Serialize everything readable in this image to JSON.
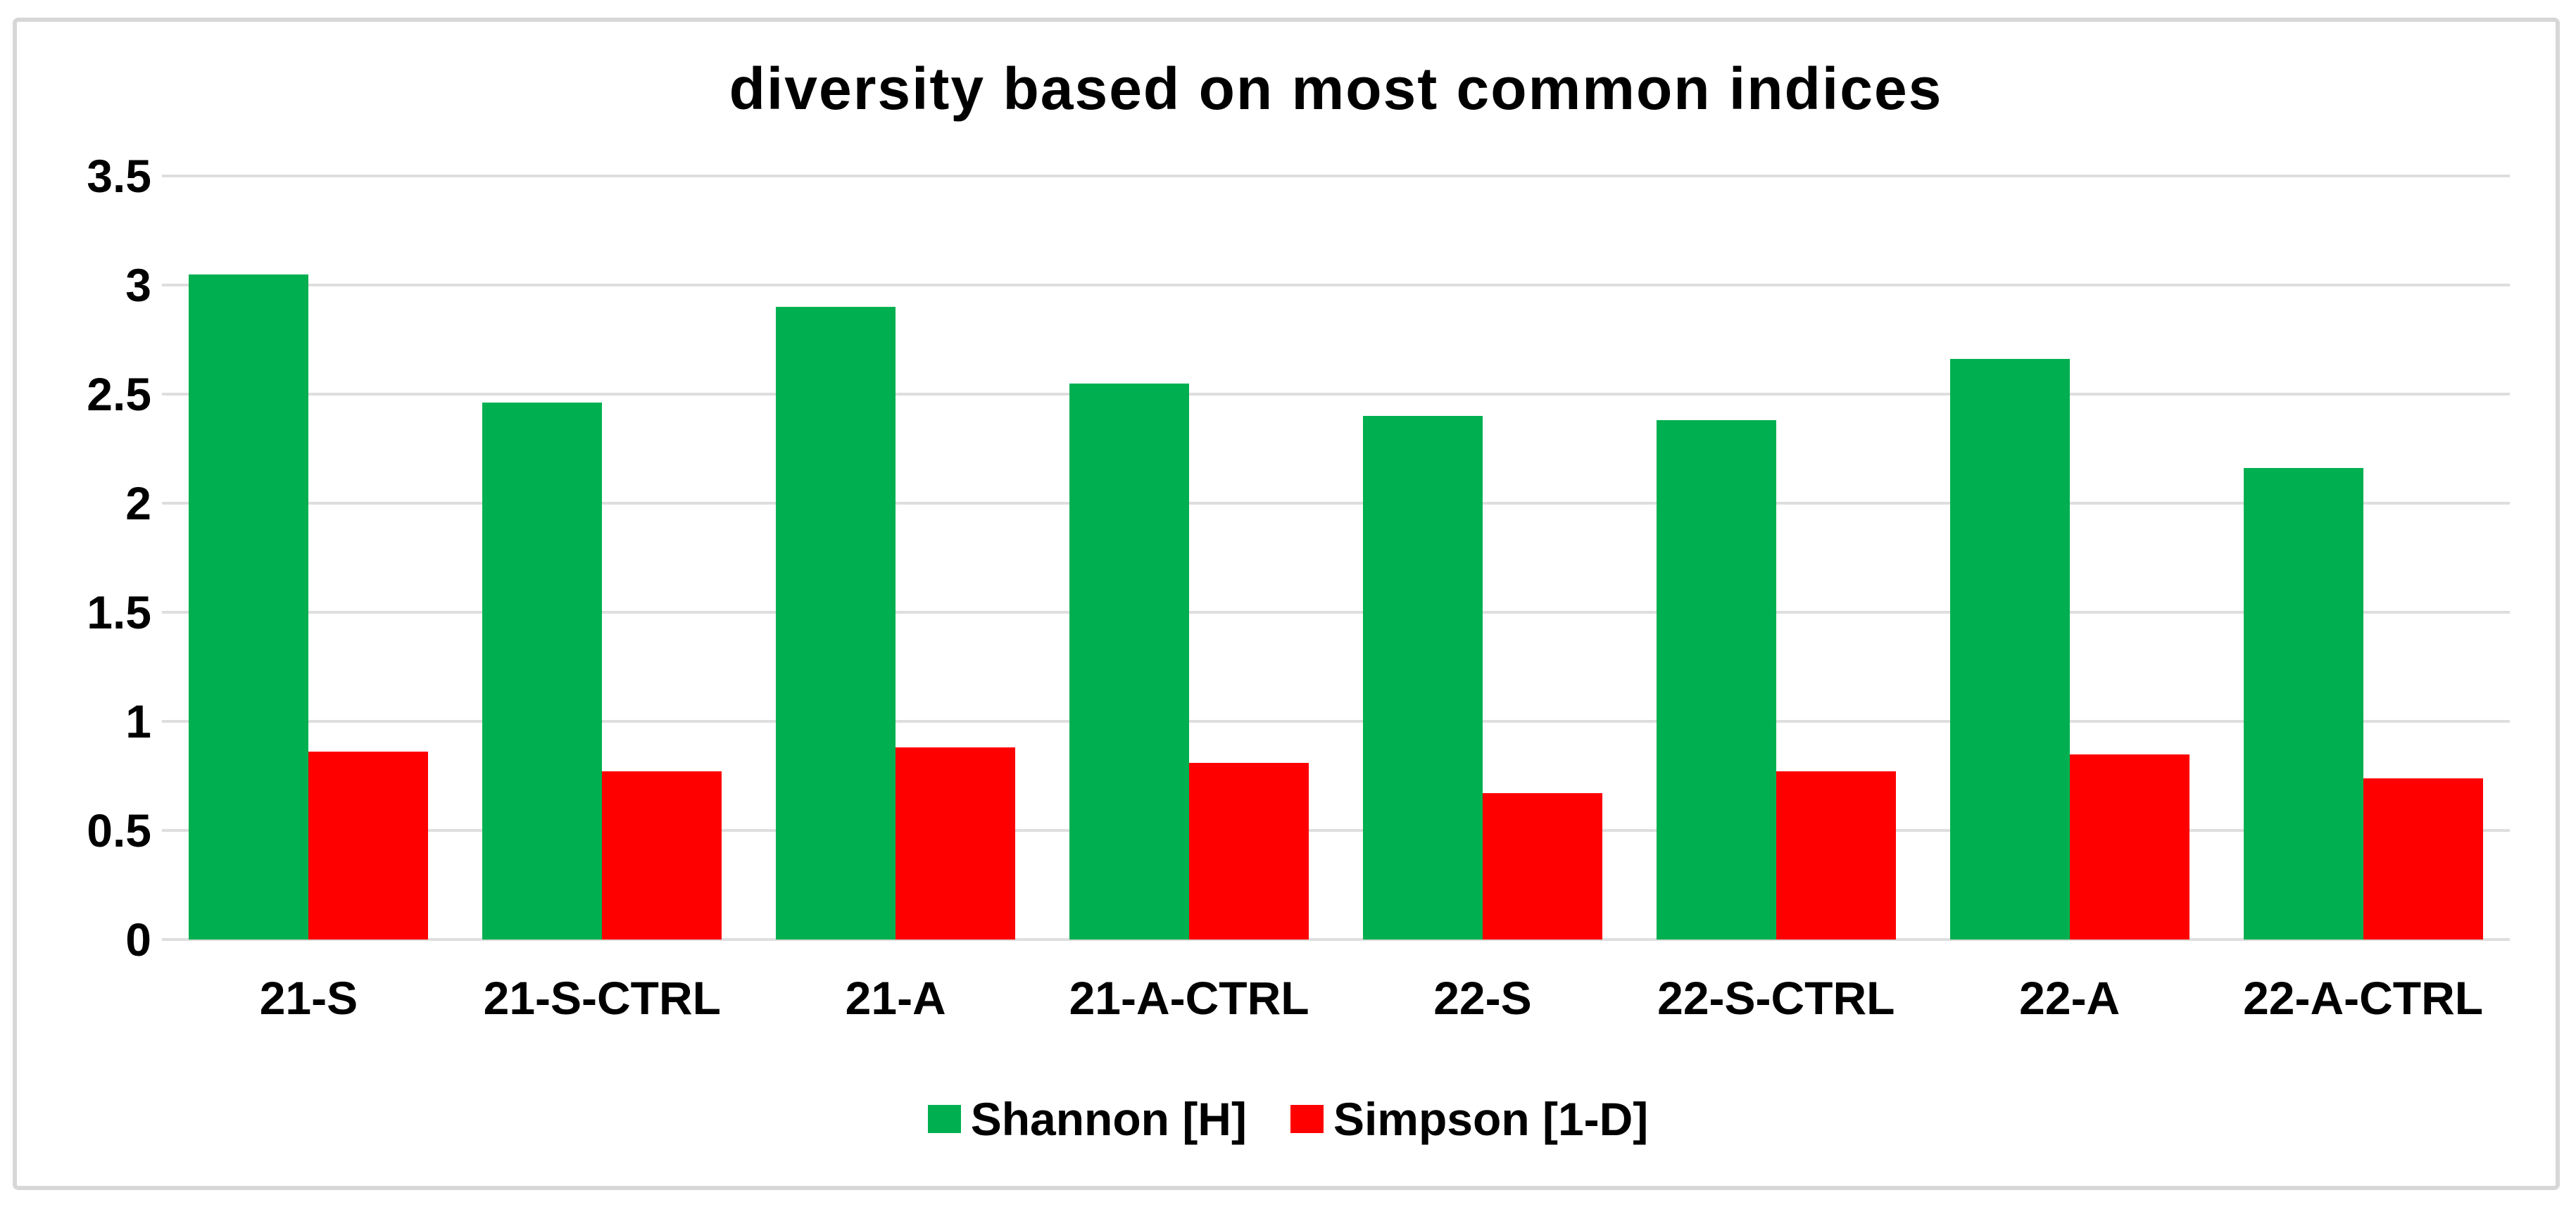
{
  "chart_data": {
    "type": "bar",
    "title": "diversity based on most common indices",
    "categories": [
      "21-S",
      "21-S-CTRL",
      "21-A",
      "21-A-CTRL",
      "22-S",
      "22-S-CTRL",
      "22-A",
      "22-A-CTRL"
    ],
    "series": [
      {
        "name": "Shannon [H]",
        "color": "#00B050",
        "values": [
          3.05,
          2.46,
          2.9,
          2.55,
          2.4,
          2.38,
          2.66,
          2.16
        ]
      },
      {
        "name": "Simpson [1-D]",
        "color": "#FF0000",
        "values": [
          0.86,
          0.77,
          0.88,
          0.81,
          0.67,
          0.77,
          0.85,
          0.74
        ]
      }
    ],
    "xlabel": "",
    "ylabel": "",
    "ylim": [
      0,
      3.5
    ],
    "y_ticks": [
      "0",
      "0.5",
      "1",
      "1.5",
      "2",
      "2.5",
      "3",
      "3.5"
    ],
    "y_tick_values": [
      0,
      0.5,
      1,
      1.5,
      2,
      2.5,
      3,
      3.5
    ],
    "grid": "horizontal-only",
    "legend_position": "bottom-center",
    "colors": {
      "grid": "#DEDEDE",
      "frame": "#D7D7D7",
      "text": "#000000",
      "background": "#FFFFFF"
    }
  }
}
